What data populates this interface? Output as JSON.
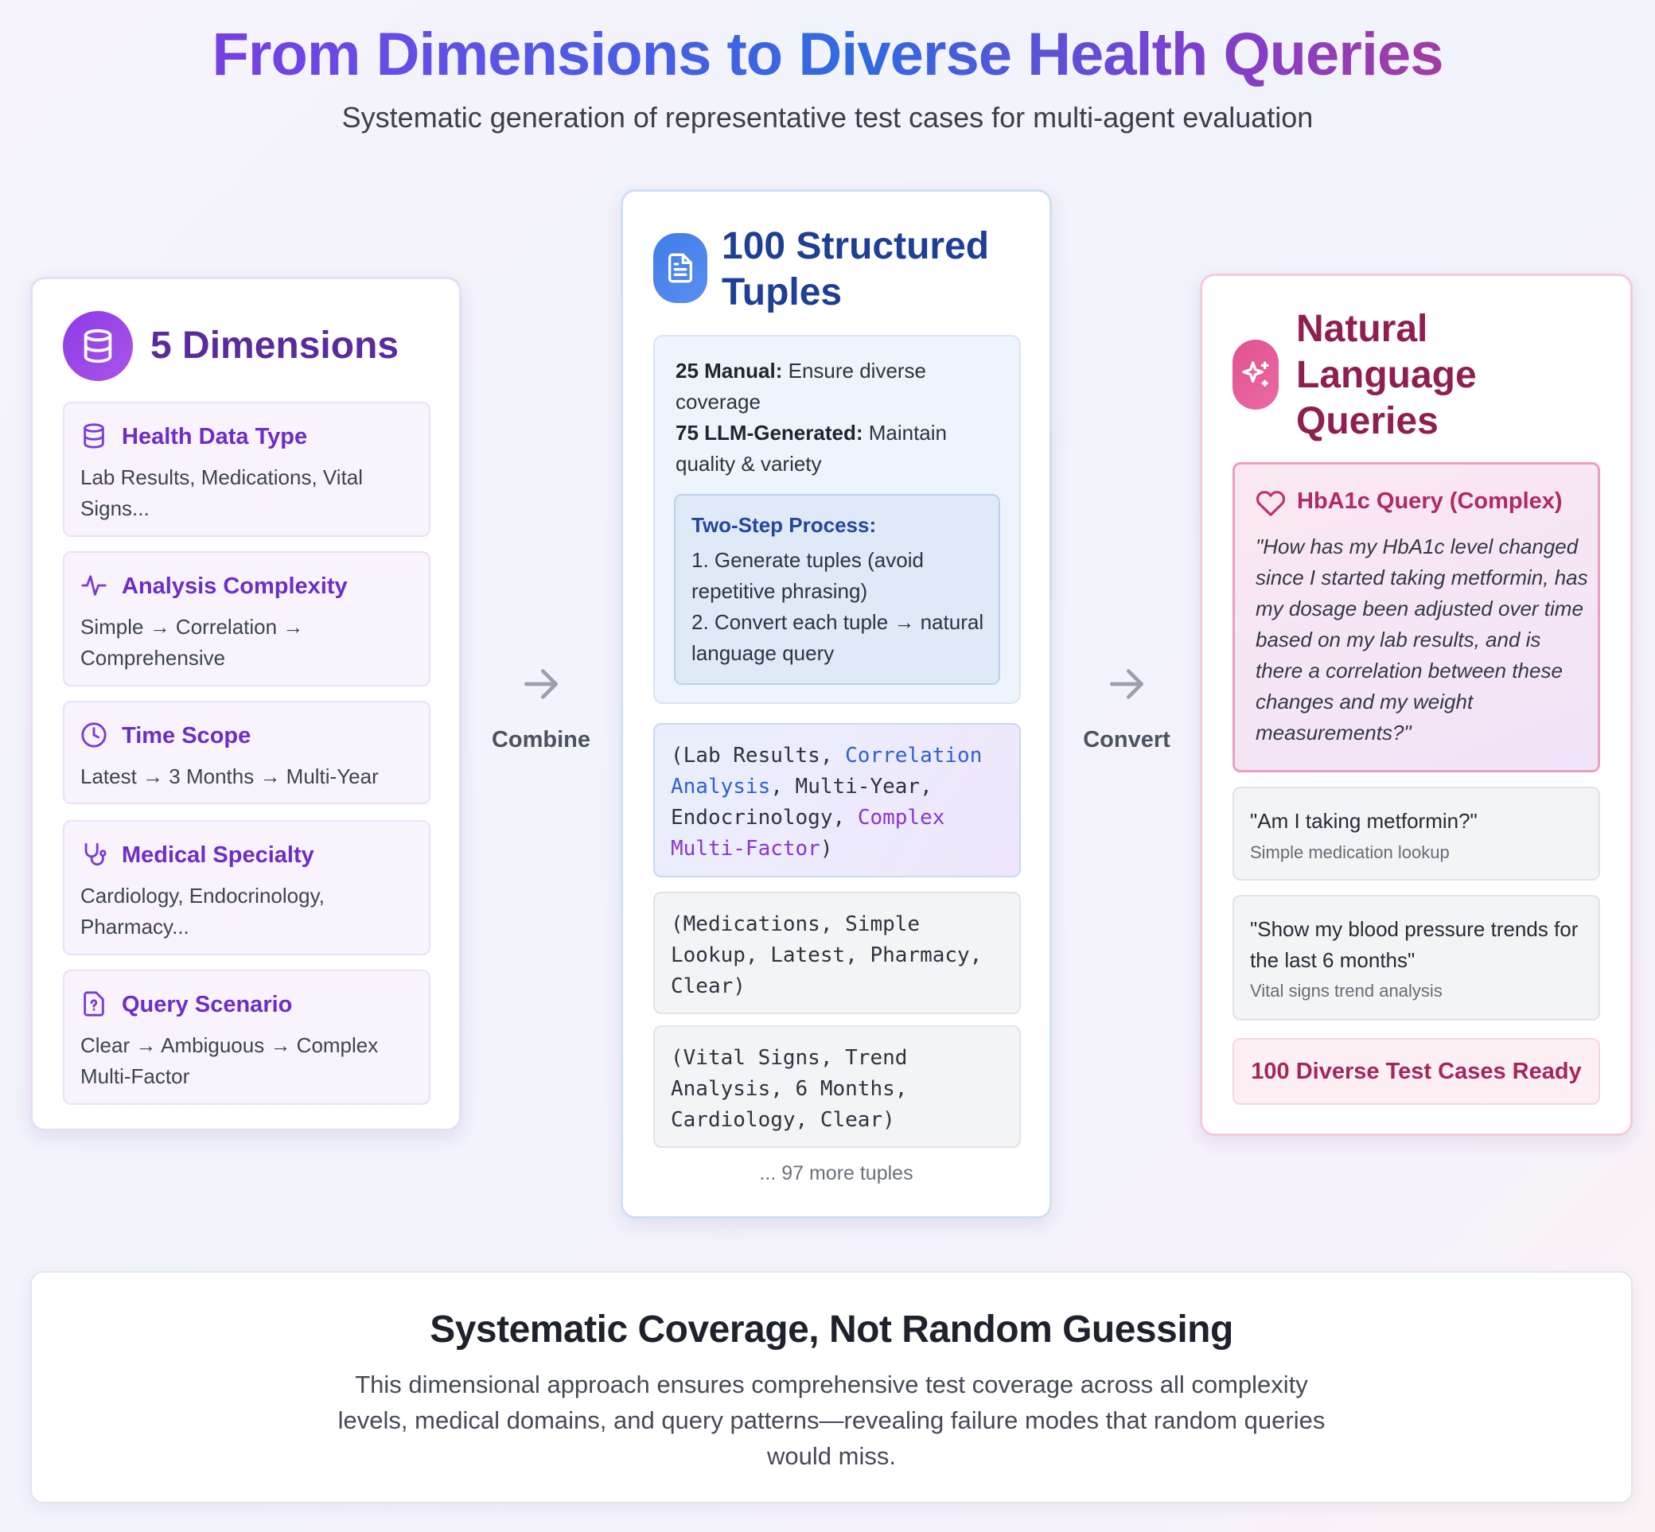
{
  "header": {
    "title": "From Dimensions to Diverse Health Queries",
    "subtitle": "Systematic generation of representative test cases for multi-agent evaluation"
  },
  "dimensions_card": {
    "heading": "5 Dimensions",
    "icon": "database-icon",
    "items": [
      {
        "title": "Health Data Type",
        "text": "Lab Results, Medications, Vital Signs...",
        "icon": "database-icon"
      },
      {
        "title": "Analysis Complexity",
        "text": "Simple → Correlation → Comprehensive",
        "icon": "activity-icon"
      },
      {
        "title": "Time Scope",
        "text": "Latest → 3 Months → Multi-Year",
        "icon": "clock-icon"
      },
      {
        "title": "Medical Specialty",
        "text": "Cardiology, Endocrinology, Pharmacy...",
        "icon": "stethoscope-icon"
      },
      {
        "title": "Query Scenario",
        "text": "Clear → Ambiguous → Complex Multi-Factor",
        "icon": "question-file-icon"
      }
    ]
  },
  "arrows": {
    "combine_label": "Combine",
    "convert_label": "Convert"
  },
  "tuples_card": {
    "heading_line1": "100 Structured",
    "heading_line2": "Tuples",
    "icon": "document-icon",
    "manual_label": "25 Manual:",
    "manual_text": " Ensure diverse coverage",
    "llm_label": "75 LLM-Generated:",
    "llm_text": " Maintain quality & variety",
    "process_title": "Two-Step Process:",
    "process_step1": "1. Generate tuples (avoid repetitive phrasing)",
    "process_step2": "2. Convert each tuple → natural language query",
    "tuple_highlight": {
      "part1": "(Lab Results, ",
      "part2": "Correlation Analysis",
      "part3": ", Multi-Year, Endocrinology, ",
      "part4": "Complex Multi-Factor",
      "part5": ")"
    },
    "tuple2": "(Medications, Simple Lookup, Latest, Pharmacy, Clear)",
    "tuple3": "(Vital Signs, Trend Analysis, 6 Months, Cardiology, Clear)",
    "more": "... 97 more tuples"
  },
  "queries_card": {
    "heading_line1": "Natural",
    "heading_line2": "Language",
    "heading_line3": "Queries",
    "icon": "sparkles-icon",
    "highlight_title": "HbA1c Query (Complex)",
    "highlight_icon": "heart-icon",
    "highlight_text": "\"How has my HbA1c level changed since I started taking metformin, has my dosage been adjusted over time based on my lab results, and is there a correlation between these changes and my weight measurements?\"",
    "query2_text": "\"Am I taking metformin?\"",
    "query2_sub": "Simple medication lookup",
    "query3_text": "\"Show my blood pressure trends for the last 6 months\"",
    "query3_sub": "Vital signs trend analysis",
    "ready": "100 Diverse Test Cases Ready"
  },
  "footer": {
    "title": "Systematic Coverage, Not Random Guessing",
    "text": "This dimensional approach ensures comprehensive test coverage across all complexity levels, medical domains, and query patterns—revealing failure modes that random queries would miss."
  },
  "colors": {
    "purple_accent": "#6d2ec4",
    "blue_accent": "#26479c",
    "pink_accent": "#a4275a"
  }
}
